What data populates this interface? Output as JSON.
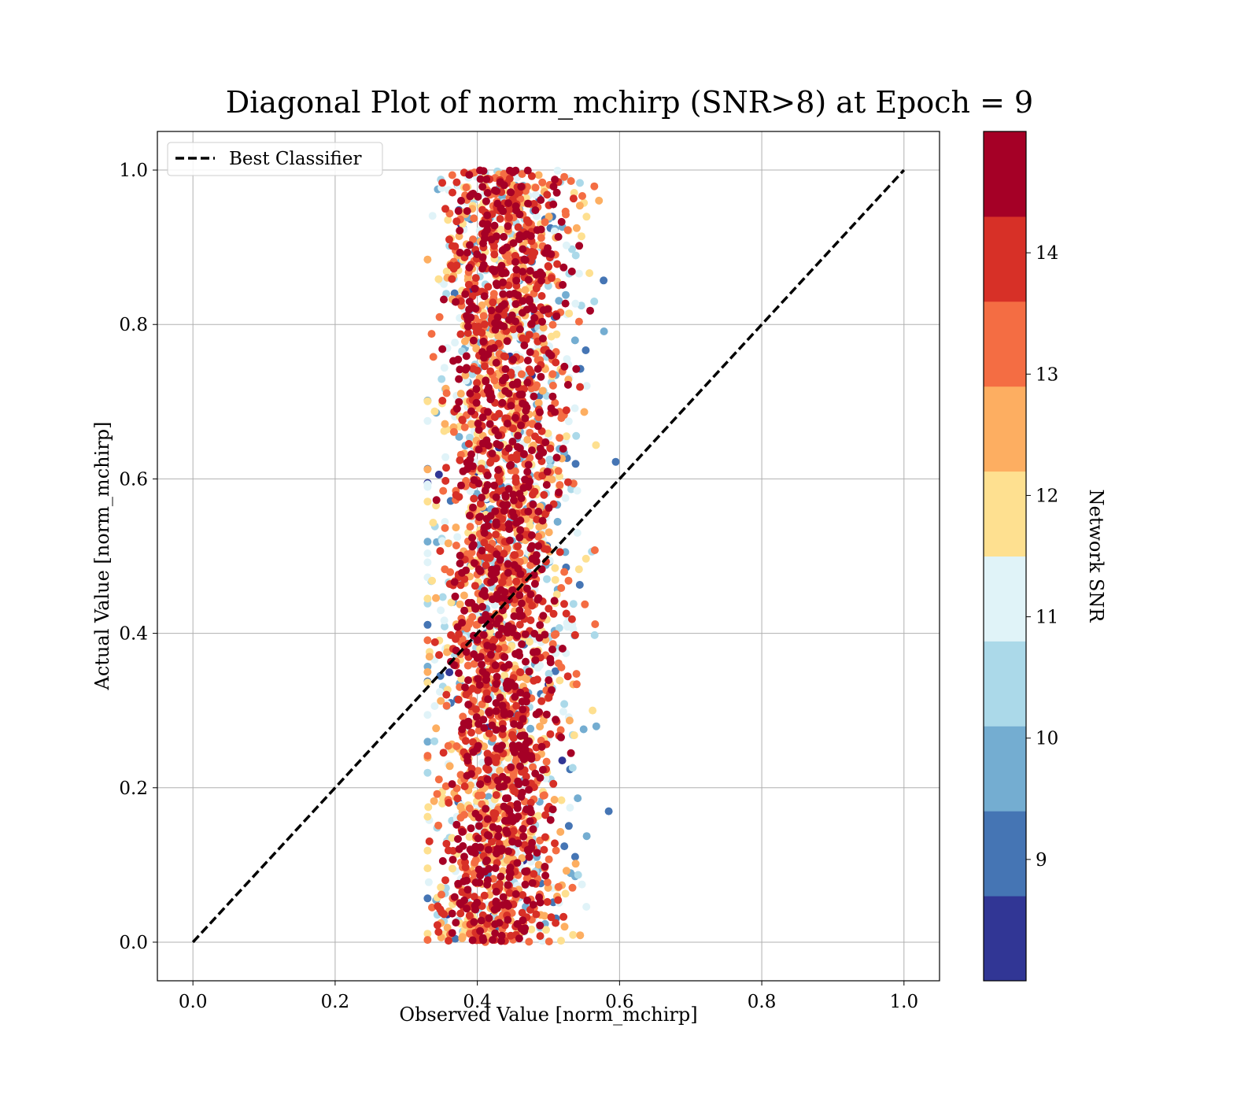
{
  "chart_data": {
    "type": "scatter",
    "title": "Diagonal Plot of norm_mchirp (SNR>8) at Epoch = 9",
    "xlabel": "Observed Value [norm_mchirp]",
    "ylabel": "Actual Value [norm_mchirp]",
    "xlim": [
      -0.05,
      1.05
    ],
    "ylim": [
      -0.05,
      1.05
    ],
    "xticks": [
      "0.0",
      "0.2",
      "0.4",
      "0.6",
      "0.8",
      "1.0"
    ],
    "yticks": [
      "0.0",
      "0.2",
      "0.4",
      "0.6",
      "0.8",
      "1.0"
    ],
    "grid": true,
    "legend": {
      "placement": "upper-left",
      "entries": [
        "Best Classifier"
      ]
    },
    "reference_line": {
      "name": "Best Classifier",
      "style": "dashed",
      "color": "#000000",
      "x": [
        0.0,
        1.0
      ],
      "y": [
        0.0,
        1.0
      ]
    },
    "scatter_trend": {
      "y_range": [
        0.0,
        1.0
      ],
      "x_center_at_y0": 0.43,
      "x_center_at_y1": 0.445,
      "x_spread": 0.05,
      "outer_band_x": [
        0.33,
        0.6
      ]
    },
    "colorbar": {
      "label": "Network SNR",
      "range": [
        8.0,
        15.0
      ],
      "ticks": [
        "9",
        "10",
        "11",
        "12",
        "13",
        "14"
      ],
      "levels": [
        8.0,
        8.7,
        9.4,
        10.1,
        10.8,
        11.5,
        12.2,
        12.9,
        13.6,
        14.3,
        15.0
      ],
      "colors": [
        "#313695",
        "#4575b4",
        "#74add1",
        "#abd9e9",
        "#e0f3f8",
        "#fee090",
        "#fdae61",
        "#f46d43",
        "#d73027",
        "#a50026"
      ]
    }
  }
}
